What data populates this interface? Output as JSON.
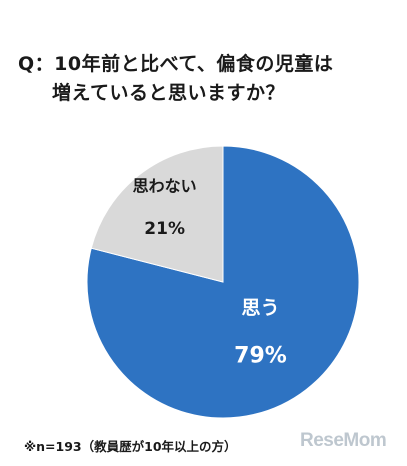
{
  "chart_data": {
    "type": "pie",
    "title_lines": [
      "Q：10年前と比べて、偏食の児童は",
      "増えていると思いますか？"
    ],
    "categories": [
      "思う",
      "思わない"
    ],
    "values": [
      79,
      21
    ],
    "value_labels": [
      "79%",
      "21%"
    ],
    "colors": [
      "#2e73c2",
      "#d9d9d9"
    ],
    "label_colors": [
      "#ffffff",
      "#1a1a1a"
    ],
    "start_angle_deg": 0,
    "direction": "clockwise"
  },
  "footnote": "※n=193（教員歴が10年以上の方）",
  "watermark": "ReseMom"
}
